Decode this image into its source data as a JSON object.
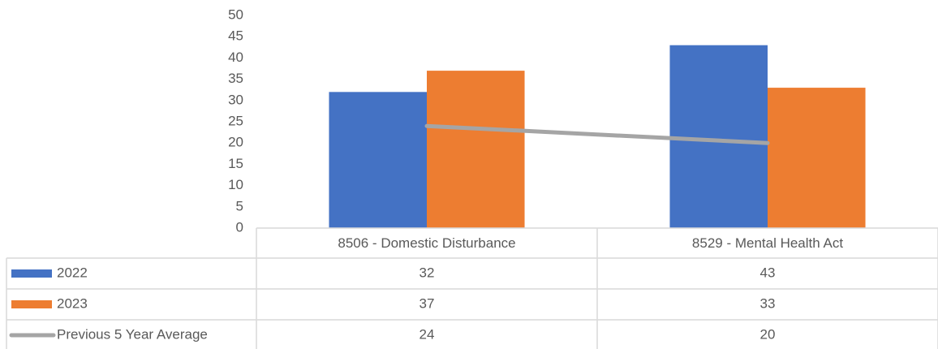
{
  "chart_data": {
    "type": "bar",
    "categories": [
      "8506 - Domestic Disturbance",
      "8529 - Mental Health Act"
    ],
    "series": [
      {
        "name": "2022",
        "color": "#4472c4",
        "values": [
          32,
          43
        ]
      },
      {
        "name": "2023",
        "color": "#ed7d31",
        "values": [
          37,
          33
        ]
      },
      {
        "name": "Previous 5 Year Average",
        "color": "#a5a5a5",
        "type": "line",
        "values": [
          24,
          20
        ]
      }
    ],
    "ylim": [
      0,
      50
    ],
    "yticks": [
      0,
      5,
      10,
      15,
      20,
      25,
      30,
      35,
      40,
      45,
      50
    ],
    "grid": false,
    "data_table": true
  }
}
